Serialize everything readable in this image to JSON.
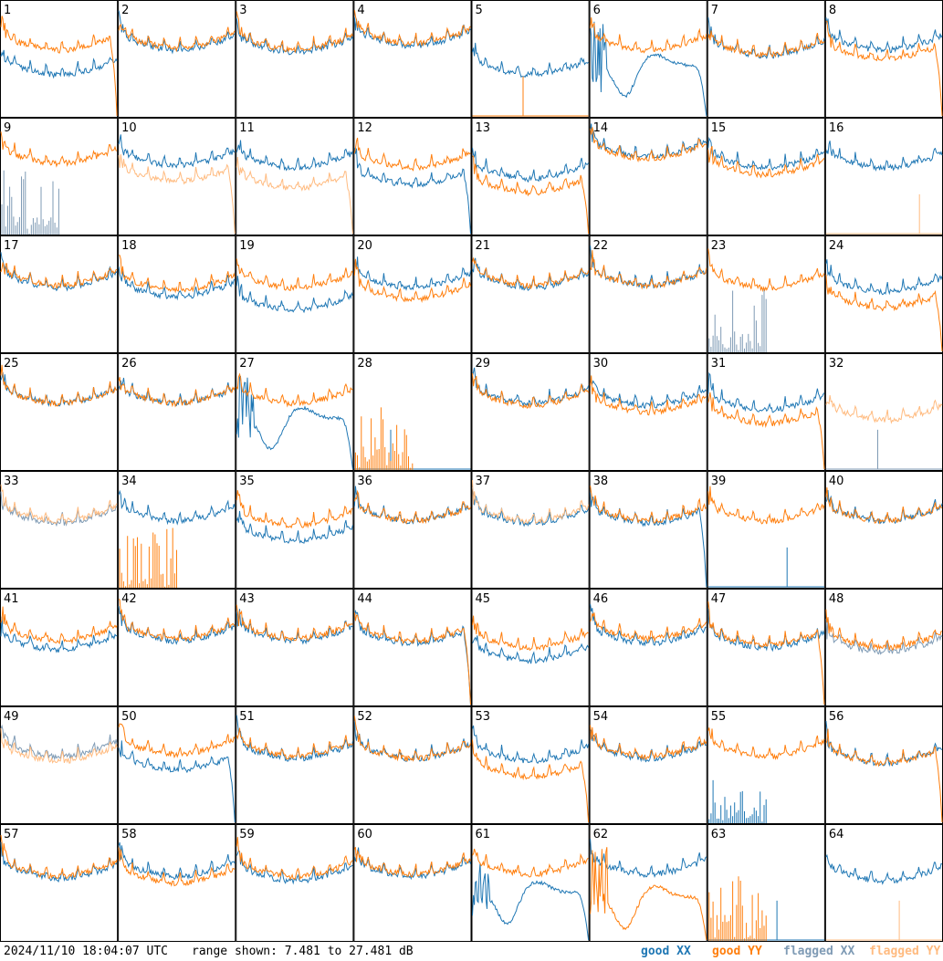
{
  "footer": {
    "timestamp": "2024/11/10 18:04:07 UTC",
    "range": "range shown: 7.481 to 27.481 dB"
  },
  "legend": [
    {
      "label": "good XX",
      "color": "#1f77b4"
    },
    {
      "label": "good YY",
      "color": "#ff7f0e"
    },
    {
      "label": "flagged XX",
      "color": "#7f9bb5"
    },
    {
      "label": "flagged YY",
      "color": "#ffbb80"
    }
  ],
  "chart_data": {
    "type": "line",
    "layout": "8x8 small multiples",
    "ylim": [
      7.481,
      27.481
    ],
    "y_unit": "dB",
    "panels": [
      {
        "id": "1",
        "xx": {
          "shape": "ripple",
          "level": 0.62,
          "flag": false
        },
        "yy": {
          "shape": "rolloff",
          "level": 0.4,
          "flag": false
        }
      },
      {
        "id": "2",
        "xx": {
          "shape": "ripple",
          "level": 0.4,
          "flag": false
        },
        "yy": {
          "shape": "ripple",
          "level": 0.38,
          "flag": false
        }
      },
      {
        "id": "3",
        "xx": {
          "shape": "ripple",
          "level": 0.42,
          "flag": false
        },
        "yy": {
          "shape": "ripple",
          "level": 0.4,
          "flag": false
        }
      },
      {
        "id": "4",
        "xx": {
          "shape": "ripple",
          "level": 0.36,
          "flag": false
        },
        "yy": {
          "shape": "ripple",
          "level": 0.34,
          "flag": false
        }
      },
      {
        "id": "5",
        "xx": {
          "shape": "ripple",
          "level": 0.62,
          "flag": false
        },
        "yy": {
          "shape": "dead",
          "level": 0,
          "flag": false
        }
      },
      {
        "id": "6",
        "xx": {
          "shape": "dip",
          "level": 0.55,
          "flag": false
        },
        "yy": {
          "shape": "ripple",
          "level": 0.4,
          "flag": false
        }
      },
      {
        "id": "7",
        "xx": {
          "shape": "ripple",
          "level": 0.45,
          "flag": false
        },
        "yy": {
          "shape": "ripple",
          "level": 0.44,
          "flag": false
        }
      },
      {
        "id": "8",
        "xx": {
          "shape": "ripple",
          "level": 0.4,
          "flag": false
        },
        "yy": {
          "shape": "rolloff",
          "level": 0.48,
          "flag": false
        }
      },
      {
        "id": "9",
        "xx": {
          "shape": "spikes",
          "level": 0,
          "flag": true
        },
        "yy": {
          "shape": "ripple",
          "level": 0.36,
          "flag": false
        }
      },
      {
        "id": "10",
        "xx": {
          "shape": "ripple",
          "level": 0.38,
          "flag": false
        },
        "yy": {
          "shape": "rolloff",
          "level": 0.52,
          "flag": true
        }
      },
      {
        "id": "11",
        "xx": {
          "shape": "ripple",
          "level": 0.4,
          "flag": false
        },
        "yy": {
          "shape": "rolloff",
          "level": 0.58,
          "flag": true
        }
      },
      {
        "id": "12",
        "xx": {
          "shape": "rolloff",
          "level": 0.55,
          "flag": false
        },
        "yy": {
          "shape": "ripple",
          "level": 0.4,
          "flag": false
        }
      },
      {
        "id": "13",
        "xx": {
          "shape": "ripple",
          "level": 0.5,
          "flag": false
        },
        "yy": {
          "shape": "rolloff",
          "level": 0.62,
          "flag": false
        }
      },
      {
        "id": "14",
        "xx": {
          "shape": "ripple",
          "level": 0.3,
          "flag": false
        },
        "yy": {
          "shape": "ripple",
          "level": 0.32,
          "flag": false
        }
      },
      {
        "id": "15",
        "xx": {
          "shape": "ripple",
          "level": 0.4,
          "flag": false
        },
        "yy": {
          "shape": "ripple",
          "level": 0.46,
          "flag": false
        }
      },
      {
        "id": "16",
        "xx": {
          "shape": "ripple",
          "level": 0.4,
          "flag": false
        },
        "yy": {
          "shape": "dead",
          "level": 0,
          "flag": true
        }
      },
      {
        "id": "17",
        "xx": {
          "shape": "ripple",
          "level": 0.42,
          "flag": false
        },
        "yy": {
          "shape": "ripple",
          "level": 0.4,
          "flag": false
        }
      },
      {
        "id": "18",
        "xx": {
          "shape": "ripple",
          "level": 0.5,
          "flag": false
        },
        "yy": {
          "shape": "ripple",
          "level": 0.44,
          "flag": false
        }
      },
      {
        "id": "19",
        "xx": {
          "shape": "ripple",
          "level": 0.62,
          "flag": false
        },
        "yy": {
          "shape": "ripple",
          "level": 0.42,
          "flag": false
        }
      },
      {
        "id": "20",
        "xx": {
          "shape": "ripple",
          "level": 0.42,
          "flag": false
        },
        "yy": {
          "shape": "ripple",
          "level": 0.52,
          "flag": false
        }
      },
      {
        "id": "21",
        "xx": {
          "shape": "ripple",
          "level": 0.42,
          "flag": false
        },
        "yy": {
          "shape": "ripple",
          "level": 0.4,
          "flag": false
        }
      },
      {
        "id": "22",
        "xx": {
          "shape": "ripple",
          "level": 0.4,
          "flag": false
        },
        "yy": {
          "shape": "ripple",
          "level": 0.4,
          "flag": false
        }
      },
      {
        "id": "23",
        "xx": {
          "shape": "spikes",
          "level": 0,
          "flag": true
        },
        "yy": {
          "shape": "ripple",
          "level": 0.42,
          "flag": false
        }
      },
      {
        "id": "24",
        "xx": {
          "shape": "ripple",
          "level": 0.46,
          "flag": false
        },
        "yy": {
          "shape": "rolloff",
          "level": 0.6,
          "flag": false
        }
      },
      {
        "id": "25",
        "xx": {
          "shape": "ripple",
          "level": 0.4,
          "flag": false
        },
        "yy": {
          "shape": "ripple",
          "level": 0.4,
          "flag": false
        }
      },
      {
        "id": "26",
        "xx": {
          "shape": "ripple",
          "level": 0.4,
          "flag": false
        },
        "yy": {
          "shape": "ripple",
          "level": 0.4,
          "flag": false
        }
      },
      {
        "id": "27",
        "xx": {
          "shape": "dip",
          "level": 0.55,
          "flag": false
        },
        "yy": {
          "shape": "ripple",
          "level": 0.4,
          "flag": false
        }
      },
      {
        "id": "28",
        "xx": {
          "shape": "dead",
          "level": 0,
          "flag": false
        },
        "yy": {
          "shape": "spikes",
          "level": 0,
          "flag": false
        }
      },
      {
        "id": "29",
        "xx": {
          "shape": "ripple",
          "level": 0.4,
          "flag": false
        },
        "yy": {
          "shape": "ripple",
          "level": 0.42,
          "flag": false
        }
      },
      {
        "id": "30",
        "xx": {
          "shape": "ripple",
          "level": 0.42,
          "flag": false
        },
        "yy": {
          "shape": "ripple",
          "level": 0.48,
          "flag": false
        }
      },
      {
        "id": "31",
        "xx": {
          "shape": "ripple",
          "level": 0.46,
          "flag": false
        },
        "yy": {
          "shape": "rolloff",
          "level": 0.58,
          "flag": false
        }
      },
      {
        "id": "32",
        "xx": {
          "shape": "dead",
          "level": 0,
          "flag": true
        },
        "yy": {
          "shape": "ripple",
          "level": 0.55,
          "flag": true
        }
      },
      {
        "id": "33",
        "xx": {
          "shape": "ripple",
          "level": 0.42,
          "flag": true
        },
        "yy": {
          "shape": "ripple",
          "level": 0.4,
          "flag": true
        }
      },
      {
        "id": "34",
        "xx": {
          "shape": "ripple",
          "level": 0.4,
          "flag": false
        },
        "yy": {
          "shape": "spikes",
          "level": 0,
          "flag": false
        }
      },
      {
        "id": "35",
        "xx": {
          "shape": "ripple",
          "level": 0.58,
          "flag": false
        },
        "yy": {
          "shape": "ripple",
          "level": 0.44,
          "flag": false
        }
      },
      {
        "id": "36",
        "xx": {
          "shape": "ripple",
          "level": 0.4,
          "flag": false
        },
        "yy": {
          "shape": "ripple",
          "level": 0.4,
          "flag": false
        }
      },
      {
        "id": "37",
        "xx": {
          "shape": "ripple",
          "level": 0.42,
          "flag": false
        },
        "yy": {
          "shape": "ripple",
          "level": 0.4,
          "flag": true
        }
      },
      {
        "id": "38",
        "xx": {
          "shape": "rolloff",
          "level": 0.42,
          "flag": false
        },
        "yy": {
          "shape": "ripple",
          "level": 0.4,
          "flag": false
        }
      },
      {
        "id": "39",
        "xx": {
          "shape": "dead",
          "level": 0,
          "flag": false
        },
        "yy": {
          "shape": "ripple",
          "level": 0.4,
          "flag": false
        }
      },
      {
        "id": "40",
        "xx": {
          "shape": "ripple",
          "level": 0.4,
          "flag": false
        },
        "yy": {
          "shape": "ripple",
          "level": 0.4,
          "flag": false
        }
      },
      {
        "id": "41",
        "xx": {
          "shape": "ripple",
          "level": 0.5,
          "flag": false
        },
        "yy": {
          "shape": "ripple",
          "level": 0.42,
          "flag": false
        }
      },
      {
        "id": "42",
        "xx": {
          "shape": "ripple",
          "level": 0.42,
          "flag": false
        },
        "yy": {
          "shape": "ripple",
          "level": 0.4,
          "flag": false
        }
      },
      {
        "id": "43",
        "xx": {
          "shape": "ripple",
          "level": 0.42,
          "flag": false
        },
        "yy": {
          "shape": "ripple",
          "level": 0.4,
          "flag": false
        }
      },
      {
        "id": "44",
        "xx": {
          "shape": "rolloff",
          "level": 0.44,
          "flag": false
        },
        "yy": {
          "shape": "rolloff",
          "level": 0.42,
          "flag": false
        }
      },
      {
        "id": "45",
        "xx": {
          "shape": "ripple",
          "level": 0.6,
          "flag": false
        },
        "yy": {
          "shape": "ripple",
          "level": 0.48,
          "flag": false
        }
      },
      {
        "id": "46",
        "xx": {
          "shape": "ripple",
          "level": 0.44,
          "flag": false
        },
        "yy": {
          "shape": "ripple",
          "level": 0.4,
          "flag": false
        }
      },
      {
        "id": "47",
        "xx": {
          "shape": "ripple",
          "level": 0.48,
          "flag": false
        },
        "yy": {
          "shape": "rolloff",
          "level": 0.46,
          "flag": false
        }
      },
      {
        "id": "48",
        "xx": {
          "shape": "ripple",
          "level": 0.52,
          "flag": true
        },
        "yy": {
          "shape": "ripple",
          "level": 0.48,
          "flag": false
        }
      },
      {
        "id": "49",
        "xx": {
          "shape": "ripple",
          "level": 0.4,
          "flag": true
        },
        "yy": {
          "shape": "ripple",
          "level": 0.44,
          "flag": true
        }
      },
      {
        "id": "50",
        "xx": {
          "shape": "rolloff",
          "level": 0.52,
          "flag": false
        },
        "yy": {
          "shape": "ripple",
          "level": 0.38,
          "flag": false
        }
      },
      {
        "id": "51",
        "xx": {
          "shape": "ripple",
          "level": 0.42,
          "flag": false
        },
        "yy": {
          "shape": "ripple",
          "level": 0.4,
          "flag": false
        }
      },
      {
        "id": "52",
        "xx": {
          "shape": "ripple",
          "level": 0.42,
          "flag": false
        },
        "yy": {
          "shape": "ripple",
          "level": 0.42,
          "flag": false
        }
      },
      {
        "id": "53",
        "xx": {
          "shape": "ripple",
          "level": 0.44,
          "flag": false
        },
        "yy": {
          "shape": "rolloff",
          "level": 0.58,
          "flag": false
        }
      },
      {
        "id": "54",
        "xx": {
          "shape": "ripple",
          "level": 0.42,
          "flag": false
        },
        "yy": {
          "shape": "ripple",
          "level": 0.4,
          "flag": false
        }
      },
      {
        "id": "55",
        "xx": {
          "shape": "spikes",
          "level": 0,
          "flag": false
        },
        "yy": {
          "shape": "ripple",
          "level": 0.4,
          "flag": false
        }
      },
      {
        "id": "56",
        "xx": {
          "shape": "ripple",
          "level": 0.46,
          "flag": false
        },
        "yy": {
          "shape": "rolloff",
          "level": 0.46,
          "flag": false
        }
      },
      {
        "id": "57",
        "xx": {
          "shape": "ripple",
          "level": 0.44,
          "flag": false
        },
        "yy": {
          "shape": "ripple",
          "level": 0.42,
          "flag": false
        }
      },
      {
        "id": "58",
        "xx": {
          "shape": "ripple",
          "level": 0.42,
          "flag": false
        },
        "yy": {
          "shape": "ripple",
          "level": 0.48,
          "flag": false
        }
      },
      {
        "id": "59",
        "xx": {
          "shape": "ripple",
          "level": 0.46,
          "flag": false
        },
        "yy": {
          "shape": "ripple",
          "level": 0.42,
          "flag": false
        }
      },
      {
        "id": "60",
        "xx": {
          "shape": "ripple",
          "level": 0.42,
          "flag": false
        },
        "yy": {
          "shape": "ripple",
          "level": 0.4,
          "flag": false
        }
      },
      {
        "id": "61",
        "xx": {
          "shape": "dip",
          "level": 0.58,
          "flag": false
        },
        "yy": {
          "shape": "ripple",
          "level": 0.4,
          "flag": false
        }
      },
      {
        "id": "62",
        "xx": {
          "shape": "ripple",
          "level": 0.4,
          "flag": false
        },
        "yy": {
          "shape": "dip",
          "level": 0.62,
          "flag": false
        }
      },
      {
        "id": "63",
        "xx": {
          "shape": "dead",
          "level": 0,
          "flag": false
        },
        "yy": {
          "shape": "spikes",
          "level": 0,
          "flag": false
        }
      },
      {
        "id": "64",
        "xx": {
          "shape": "ripple",
          "level": 0.46,
          "flag": false
        },
        "yy": {
          "shape": "dead",
          "level": 0,
          "flag": true
        }
      }
    ]
  }
}
